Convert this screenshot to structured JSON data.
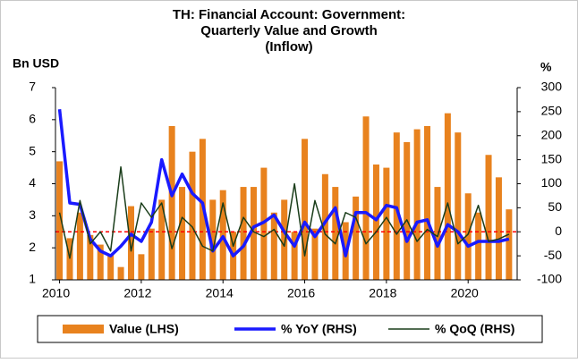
{
  "chart_data": {
    "type": "bar_line",
    "title": [
      "TH: Financial Account: Government:",
      "Quarterly Value and Growth",
      "(Inflow)"
    ],
    "y_label": "Bn USD",
    "y2_label": "%",
    "x": [
      2010,
      2010.25,
      2010.5,
      2010.75,
      2011,
      2011.25,
      2011.5,
      2011.75,
      2012,
      2012.25,
      2012.5,
      2012.75,
      2013,
      2013.25,
      2013.5,
      2013.75,
      2014,
      2014.25,
      2014.5,
      2014.75,
      2015,
      2015.25,
      2015.5,
      2015.75,
      2016,
      2016.25,
      2016.5,
      2016.75,
      2017,
      2017.25,
      2017.5,
      2017.75,
      2018,
      2018.25,
      2018.5,
      2018.75,
      2019,
      2019.25,
      2019.5,
      2019.75,
      2020,
      2020.25,
      2020.5,
      2020.75,
      2021
    ],
    "xlim": [
      2009.9,
      2021.2
    ],
    "xticks": [
      2010,
      2012,
      2014,
      2016,
      2018,
      2020
    ],
    "ylim": [
      1,
      7
    ],
    "yticks": [
      1,
      2,
      3,
      4,
      5,
      6,
      7
    ],
    "y2lim": [
      -100,
      300
    ],
    "y2ticks": [
      -100,
      -50,
      0,
      50,
      100,
      150,
      200,
      250,
      300
    ],
    "reference_line": {
      "axis": "y2",
      "value": 0,
      "color": "#ff0000"
    },
    "series": [
      {
        "name": "Value (LHS)",
        "kind": "bar",
        "color": "#e8821e",
        "values": [
          4.7,
          2.3,
          3.1,
          2.4,
          2.1,
          1.8,
          1.4,
          3.3,
          1.8,
          2.6,
          3.5,
          5.8,
          3.9,
          5.0,
          5.4,
          3.5,
          3.8,
          2.5,
          3.9,
          3.9,
          4.5,
          3.1,
          3.5,
          2.5,
          5.4,
          2.6,
          4.3,
          3.9,
          2.8,
          3.6,
          6.1,
          4.6,
          4.5,
          5.6,
          5.3,
          5.7,
          5.8,
          3.9,
          6.2,
          5.6,
          3.7,
          3.1,
          4.9,
          4.2,
          3.2
        ]
      },
      {
        "name": "% YoY (RHS)",
        "kind": "line",
        "axis": "y2",
        "color": "#1a1aff",
        "values": [
          255,
          60,
          57,
          -15,
          -40,
          -50,
          -30,
          -5,
          -20,
          20,
          150,
          75,
          120,
          80,
          60,
          -40,
          -10,
          -50,
          -30,
          10,
          20,
          35,
          0,
          -30,
          20,
          -10,
          20,
          50,
          -50,
          40,
          40,
          25,
          55,
          50,
          -20,
          20,
          25,
          -30,
          15,
          0,
          -30,
          -20,
          -20,
          -20,
          -15
        ]
      },
      {
        "name": "% QoQ (RHS)",
        "kind": "line",
        "axis": "y2",
        "color": "#1a3d1a",
        "values": [
          40,
          -55,
          65,
          -25,
          0,
          -40,
          135,
          -40,
          60,
          30,
          60,
          -35,
          30,
          10,
          -30,
          -40,
          60,
          -30,
          30,
          0,
          -10,
          5,
          -30,
          100,
          -50,
          65,
          -5,
          -25,
          40,
          30,
          -25,
          0,
          30,
          -5,
          25,
          -20,
          5,
          -10,
          60,
          -25,
          -5,
          55,
          -20,
          -15,
          -5
        ]
      }
    ]
  }
}
